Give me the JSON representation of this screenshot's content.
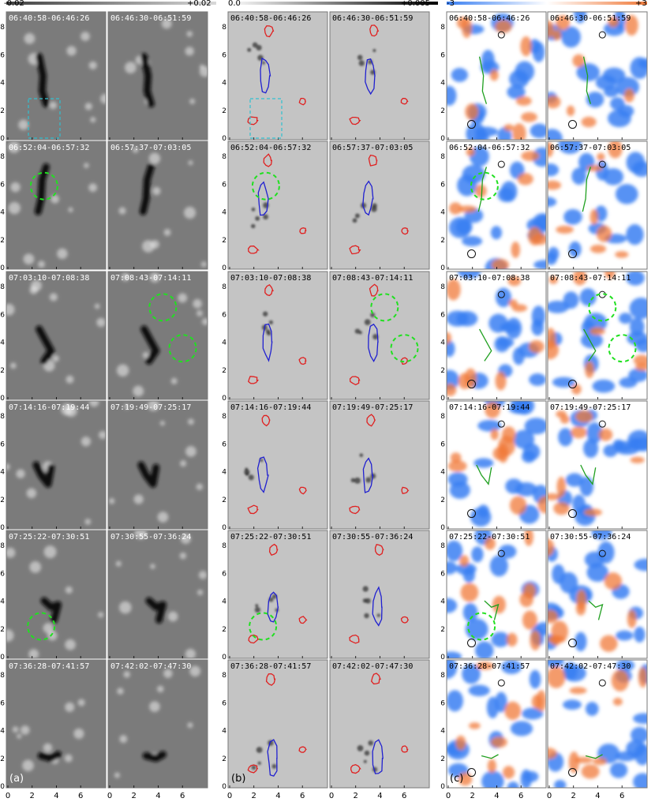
{
  "colorbars": [
    {
      "min_label": "-0.02",
      "max_label": "+0.02",
      "colors": [
        "#404040",
        "#d8d8d8"
      ]
    },
    {
      "min_label": "0.0",
      "max_label": "+0.005",
      "colors": [
        "#ffffff",
        "#000000"
      ]
    },
    {
      "min_label": "-3",
      "max_label": "+3",
      "colors": [
        "#3a7ff2",
        "#ffffff",
        "#f07a3a"
      ]
    }
  ],
  "column_labels": [
    "(a)",
    "(b)",
    "(c)"
  ],
  "axes": {
    "x_ticks": [
      "0",
      "2",
      "4",
      "6"
    ],
    "y_ticks": [
      "0",
      "2",
      "4",
      "6",
      "8"
    ]
  },
  "rows": [
    {
      "left_interval": "06:40:58-06:46:26",
      "right_interval": "06:46:30-06:51:59"
    },
    {
      "left_interval": "06:52:04-06:57:32",
      "right_interval": "06:57:37-07:03:05"
    },
    {
      "left_interval": "07:03:10-07:08:38",
      "right_interval": "07:08:43-07:14:11"
    },
    {
      "left_interval": "07:14:16-07:19:44",
      "right_interval": "07:19:49-07:25:17"
    },
    {
      "left_interval": "07:25:22-07:30:51",
      "right_interval": "07:30:55-07:36:24"
    },
    {
      "left_interval": "07:36:28-07:41:57",
      "right_interval": "07:42:02-07:47:30"
    }
  ],
  "panel_styles": {
    "magnetogram": {
      "background": "#7b7b7b",
      "dark": "#111111",
      "light": "#f2f2f2"
    },
    "intensity": {
      "background": "#c4c4c4",
      "dark": "#2a2a2a"
    },
    "velocity": {
      "blue": "#3a7ff2",
      "orange": "#f07a3a"
    }
  },
  "contour_colors": {
    "red": "#e02020",
    "blue": "#2020d0",
    "green": "#20a020",
    "black": "#111111",
    "cyan": "#30c0d0",
    "highlight": "#20e020"
  }
}
